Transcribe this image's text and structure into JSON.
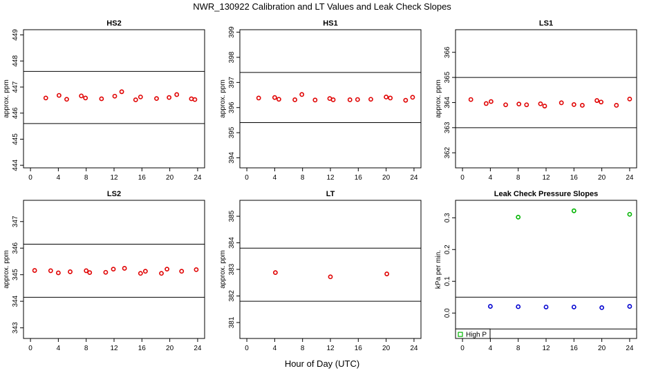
{
  "figure": {
    "title": "NWR_130922  Calibration and LT Values and Leak Check Slopes",
    "xlabel": "Hour of Day (UTC)"
  },
  "chart_data": [
    {
      "type": "scatter",
      "title": "HS2",
      "ylabel": "approx. ppm",
      "xlim": [
        -1,
        25
      ],
      "ylim": [
        443.9,
        449.2
      ],
      "xticks": [
        0,
        4,
        8,
        12,
        16,
        20,
        24
      ],
      "xtick_labels": [
        "0",
        "4",
        "8",
        "12",
        "16",
        "20",
        "24"
      ],
      "yticks": [
        444,
        445,
        446,
        447,
        448,
        449
      ],
      "ytick_labels": [
        "444",
        "445",
        "446",
        "447",
        "448",
        "449"
      ],
      "hlines": [
        445.6,
        447.6
      ],
      "series": [
        {
          "color": "#e00000",
          "marker": "circle",
          "x": [
            2.2,
            4.1,
            5.2,
            7.3,
            7.9,
            10.2,
            12.1,
            13.1,
            15.1,
            15.8,
            18.1,
            19.9,
            21.0,
            23.1,
            23.6
          ],
          "y": [
            446.58,
            446.68,
            446.53,
            446.66,
            446.58,
            446.55,
            446.65,
            446.82,
            446.51,
            446.62,
            446.56,
            446.6,
            446.71,
            446.55,
            446.52
          ]
        }
      ]
    },
    {
      "type": "scatter",
      "title": "HS1",
      "ylabel": "approx. ppm",
      "xlim": [
        -1,
        25
      ],
      "ylim": [
        393.6,
        399.1
      ],
      "xticks": [
        0,
        4,
        8,
        12,
        16,
        20,
        24
      ],
      "xtick_labels": [
        "0",
        "4",
        "8",
        "12",
        "16",
        "20",
        "24"
      ],
      "yticks": [
        394,
        395,
        396,
        397,
        398,
        399
      ],
      "ytick_labels": [
        "394",
        "395",
        "396",
        "397",
        "398",
        "399"
      ],
      "hlines": [
        395.4,
        397.4
      ],
      "series": [
        {
          "color": "#e00000",
          "marker": "circle",
          "x": [
            1.7,
            4.0,
            4.6,
            6.9,
            7.9,
            9.8,
            11.9,
            12.4,
            14.8,
            15.9,
            17.8,
            20.0,
            20.6,
            22.8,
            23.8
          ],
          "y": [
            396.38,
            396.4,
            396.33,
            396.31,
            396.52,
            396.3,
            396.36,
            396.31,
            396.31,
            396.32,
            396.33,
            396.42,
            396.38,
            396.29,
            396.41
          ]
        }
      ]
    },
    {
      "type": "scatter",
      "title": "LS1",
      "ylabel": "approx. ppm",
      "xlim": [
        -1,
        25
      ],
      "ylim": [
        361.4,
        366.9
      ],
      "xticks": [
        0,
        4,
        8,
        12,
        16,
        20,
        24
      ],
      "xtick_labels": [
        "0",
        "4",
        "8",
        "12",
        "16",
        "20",
        "24"
      ],
      "yticks": [
        362,
        363,
        364,
        365,
        366
      ],
      "ytick_labels": [
        "362",
        "363",
        "364",
        "365",
        "366"
      ],
      "hlines": [
        363.0,
        365.0
      ],
      "series": [
        {
          "color": "#e00000",
          "marker": "circle",
          "x": [
            1.2,
            3.4,
            4.1,
            6.2,
            8.1,
            9.2,
            11.2,
            11.8,
            14.2,
            16.0,
            17.2,
            19.3,
            19.9,
            22.1,
            24.0
          ],
          "y": [
            364.12,
            363.96,
            364.04,
            363.91,
            363.94,
            363.91,
            363.95,
            363.86,
            363.99,
            363.92,
            363.89,
            364.08,
            364.02,
            363.89,
            364.14
          ]
        }
      ]
    },
    {
      "type": "scatter",
      "title": "LS2",
      "ylabel": "approx. ppm",
      "xlim": [
        -1,
        25
      ],
      "ylim": [
        342.6,
        347.8
      ],
      "xticks": [
        0,
        4,
        8,
        12,
        16,
        20,
        24
      ],
      "xtick_labels": [
        "0",
        "4",
        "8",
        "12",
        "16",
        "20",
        "24"
      ],
      "yticks": [
        343,
        344,
        345,
        346,
        347
      ],
      "ytick_labels": [
        "343",
        "344",
        "345",
        "346",
        "347"
      ],
      "hlines": [
        344.15,
        346.15
      ],
      "series": [
        {
          "color": "#e00000",
          "marker": "circle",
          "x": [
            0.6,
            2.9,
            4.0,
            5.7,
            8.0,
            8.5,
            10.8,
            11.9,
            13.5,
            15.8,
            16.5,
            18.8,
            19.6,
            21.7,
            23.8
          ],
          "y": [
            345.16,
            345.15,
            345.07,
            345.11,
            345.15,
            345.08,
            345.09,
            345.21,
            345.24,
            345.05,
            345.13,
            345.05,
            345.21,
            345.13,
            345.19
          ]
        }
      ]
    },
    {
      "type": "scatter",
      "title": "LT",
      "ylabel": "approx. ppm",
      "xlim": [
        -1,
        25
      ],
      "ylim": [
        380.4,
        385.6
      ],
      "xticks": [
        0,
        4,
        8,
        12,
        16,
        20,
        24
      ],
      "xtick_labels": [
        "0",
        "4",
        "8",
        "12",
        "16",
        "20",
        "24"
      ],
      "yticks": [
        381,
        382,
        383,
        384,
        385
      ],
      "ytick_labels": [
        "381",
        "382",
        "383",
        "384",
        "385"
      ],
      "hlines": [
        381.8,
        383.8
      ],
      "series": [
        {
          "color": "#e00000",
          "marker": "circle",
          "x": [
            4.1,
            12.0,
            20.1
          ],
          "y": [
            382.88,
            382.72,
            382.83
          ]
        }
      ]
    },
    {
      "type": "scatter",
      "title": "Leak Check Pressure Slopes",
      "ylabel": "kPa per min.",
      "xlim": [
        -1,
        25
      ],
      "ylim": [
        -0.08,
        0.355
      ],
      "xticks": [
        0,
        4,
        8,
        12,
        16,
        20,
        24
      ],
      "xtick_labels": [
        "0",
        "4",
        "8",
        "12",
        "16",
        "20",
        "24"
      ],
      "yticks": [
        0.0,
        0.1,
        0.2,
        0.3
      ],
      "ytick_labels": [
        "0.0",
        "0.1",
        "0.2",
        "0.3"
      ],
      "hlines": [
        0.05,
        -0.05
      ],
      "legend": {
        "position": "bottom-left",
        "entries": [
          {
            "label": "High P",
            "color": "#00b400",
            "marker": "square"
          }
        ]
      },
      "series": [
        {
          "color": "#00b400",
          "marker": "circle",
          "x": [
            8.0,
            16.0,
            24.0
          ],
          "y": [
            0.302,
            0.322,
            0.311
          ]
        },
        {
          "color": "#0000d0",
          "marker": "circle",
          "x": [
            4.0,
            8.0,
            12.0,
            16.0,
            20.0,
            24.0
          ],
          "y": [
            0.021,
            0.02,
            0.019,
            0.019,
            0.017,
            0.021
          ]
        }
      ]
    }
  ]
}
